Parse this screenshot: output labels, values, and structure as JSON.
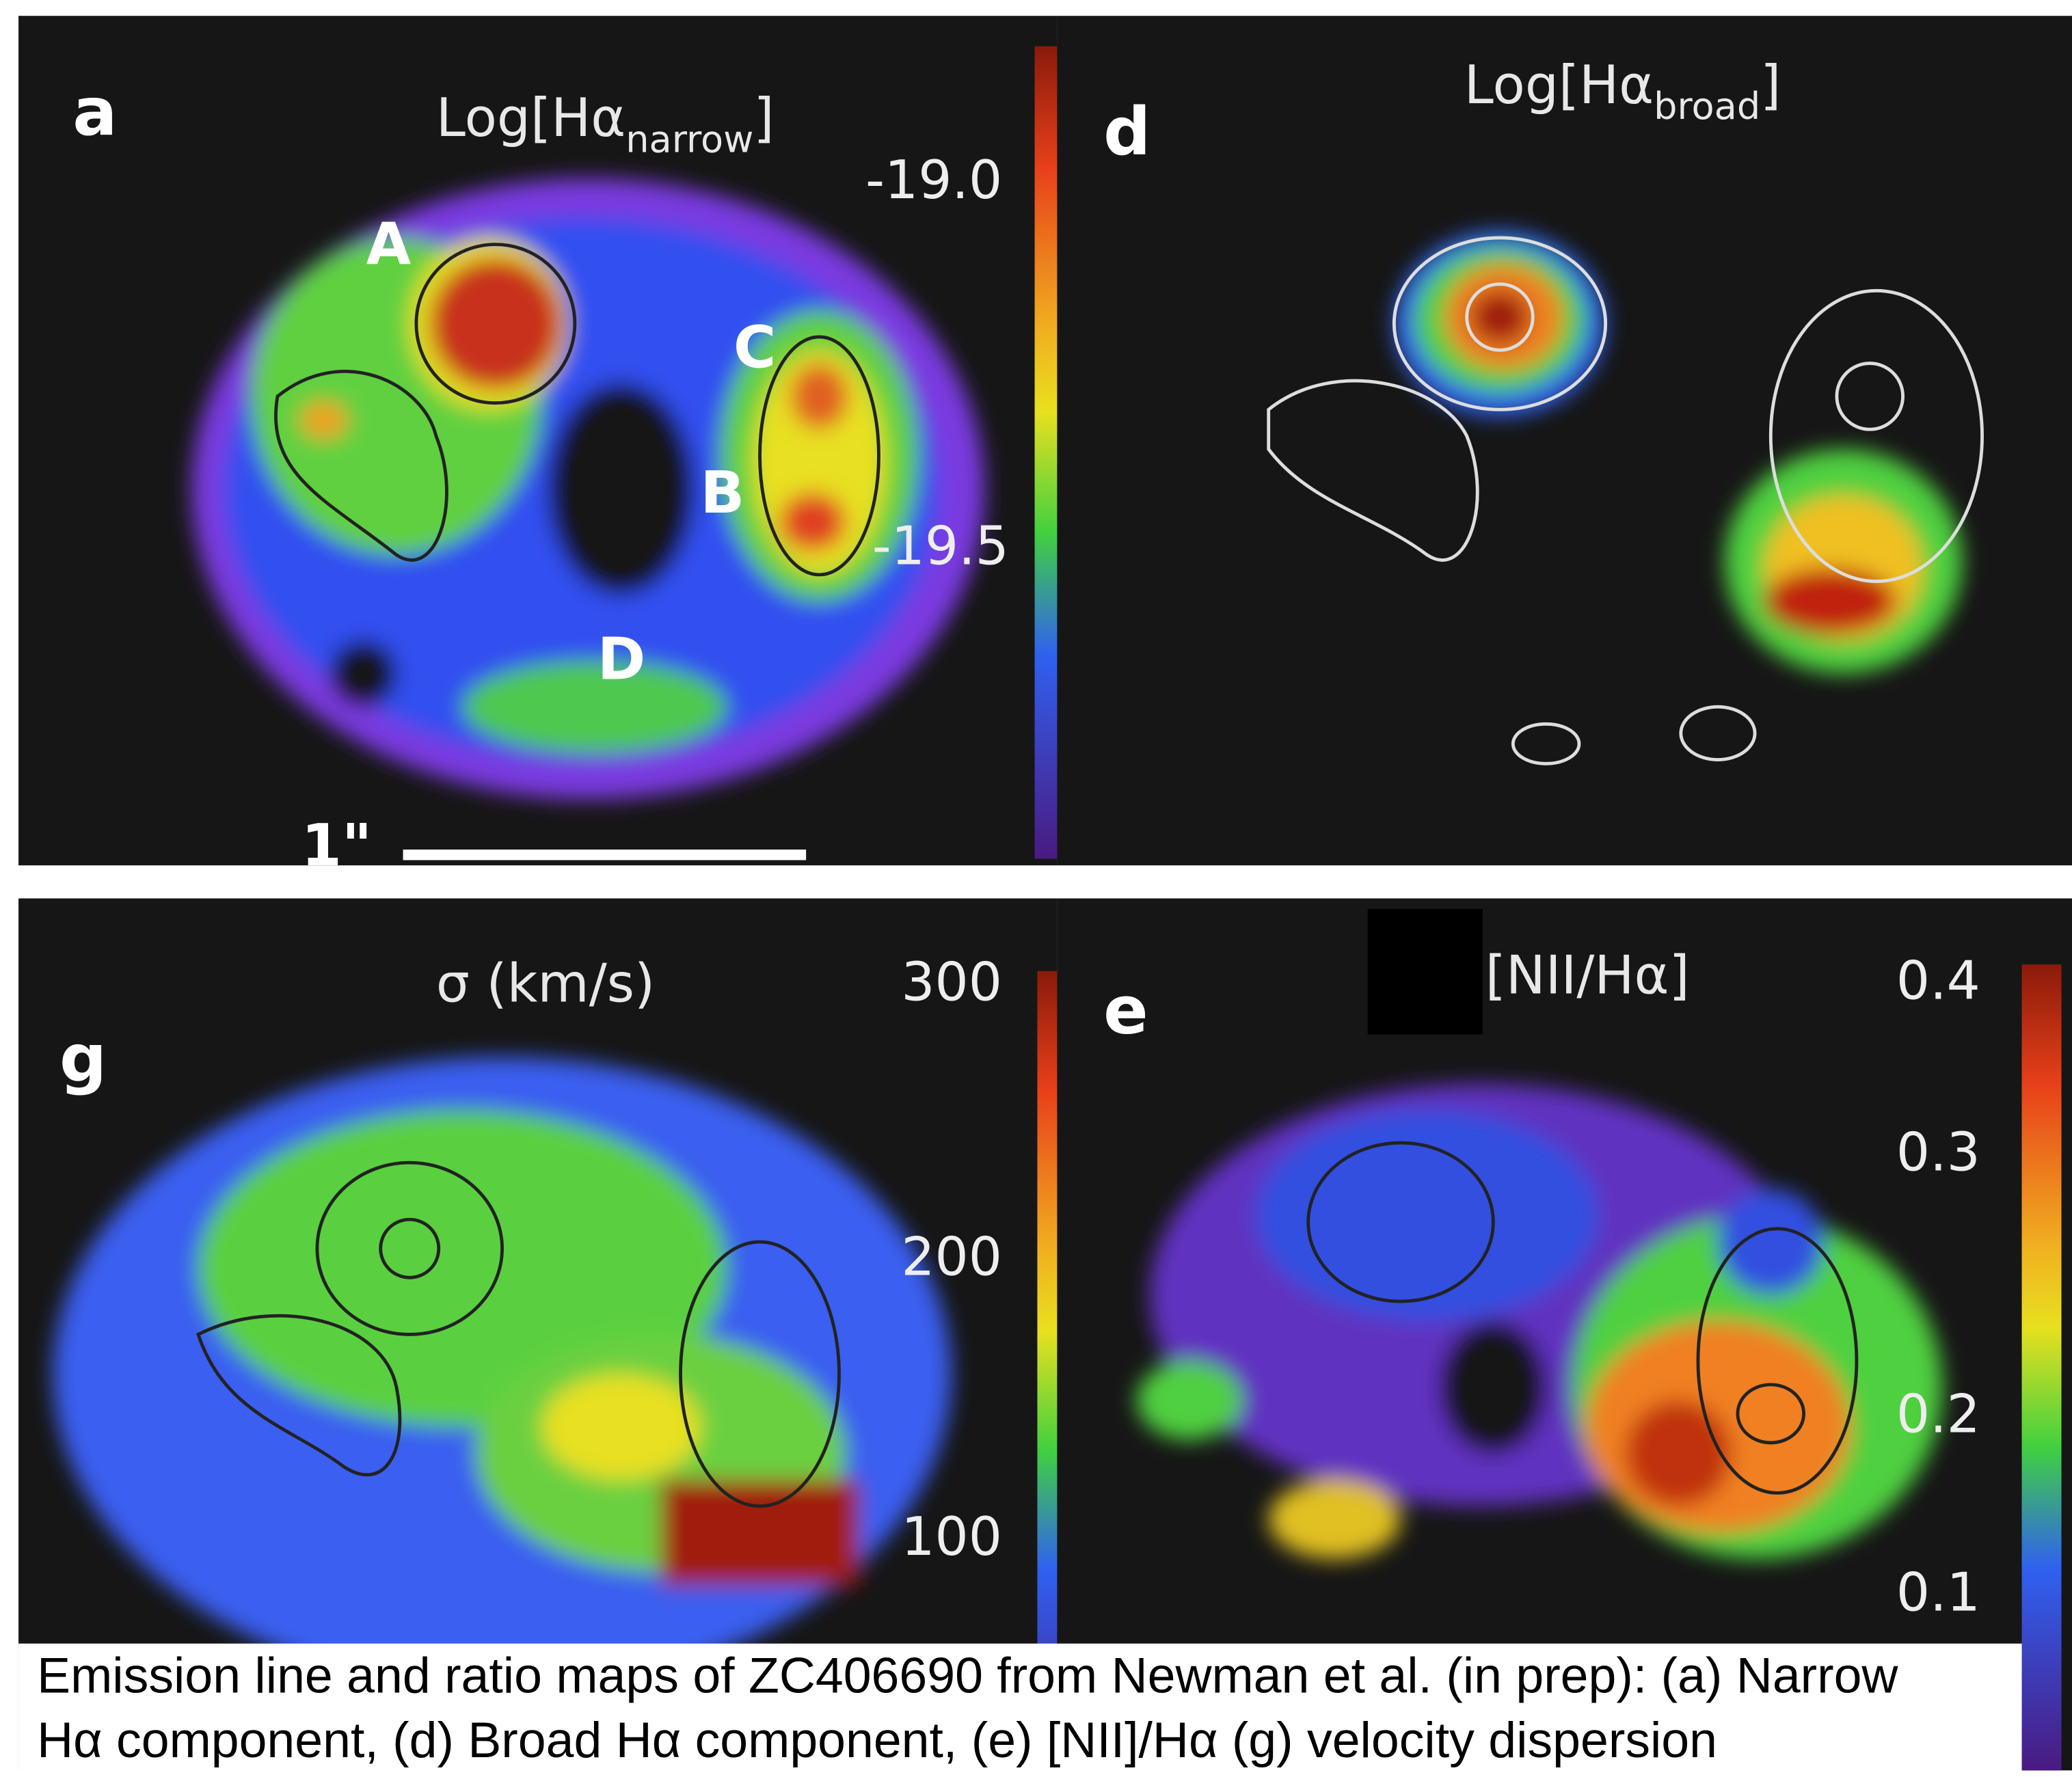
{
  "panels": [
    {
      "label": "a",
      "title": {
        "pre": "Log[Hα",
        "sub": "narrow",
        "post": "]"
      },
      "colorbar_ticks": [
        "-19.0",
        "-19.5"
      ],
      "annotations": [
        "A",
        "C",
        "B",
        "D"
      ],
      "scale_bar": "1\""
    },
    {
      "label": "d",
      "title": {
        "pre": "Log[Hα",
        "sub": "broad",
        "post": "]"
      }
    },
    {
      "label": "g",
      "title": "σ (km/s)",
      "colorbar_ticks": [
        "300",
        "200",
        "100"
      ]
    },
    {
      "label": "e",
      "title": "[NII/Hα]",
      "colorbar_ticks": [
        "0.4",
        "0.3",
        "0.2",
        "0.1"
      ]
    }
  ],
  "caption": [
    "Emission line and ratio maps of ZC406690 from Newman et al. (in prep): (a) Narrow",
    "Hα component, (d) Broad Hα component, (e) [NII]/Hα (g) velocity dispersion"
  ]
}
